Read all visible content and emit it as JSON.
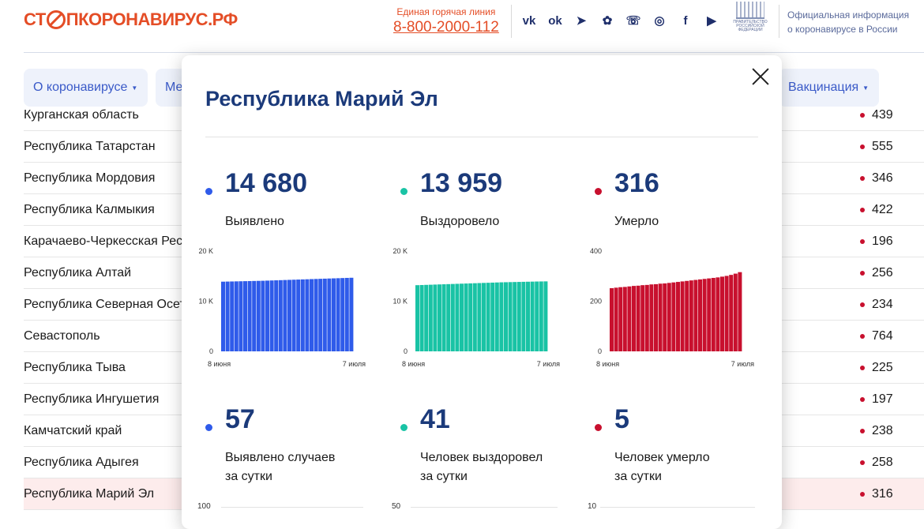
{
  "header": {
    "logo_part1": "СТ",
    "logo_part2": "ПКОРОНАВИРУС.РФ",
    "hotline_label": "Единая горячая линия",
    "hotline_number": "8-800-2000-112",
    "socials": [
      {
        "icon": "vk-icon",
        "glyph": "vk"
      },
      {
        "icon": "odnoklassniki-icon",
        "glyph": "ok"
      },
      {
        "icon": "telegram-icon",
        "glyph": "➤"
      },
      {
        "icon": "viber-icon",
        "glyph": "✿"
      },
      {
        "icon": "viber-phone-icon",
        "glyph": "☏"
      },
      {
        "icon": "instagram-icon",
        "glyph": "◎"
      },
      {
        "icon": "facebook-icon",
        "glyph": "f"
      },
      {
        "icon": "youtube-icon",
        "glyph": "▶"
      }
    ],
    "gov_label": "ПРАВИТЕЛЬСТВО РОССИЙСКОЙ ФЕДЕРАЦИИ",
    "official_line1": "Официальная информация",
    "official_line2": "о коронавирусе в России"
  },
  "nav": {
    "about": "О коронавирусе",
    "measures": "Ме",
    "vaccination": "Вакцинация",
    "arrow": "▼"
  },
  "regions": [
    {
      "name": "Курганская область",
      "value": "439"
    },
    {
      "name": "Республика Татарстан",
      "value": "555"
    },
    {
      "name": "Республика Мордовия",
      "value": "346"
    },
    {
      "name": "Республика Калмыкия",
      "value": "422"
    },
    {
      "name": "Карачаево-Черкесская Рес",
      "value": "196"
    },
    {
      "name": "Республика Алтай",
      "value": "256"
    },
    {
      "name": "Республика Северная Осет",
      "value": "234"
    },
    {
      "name": "Севастополь",
      "value": "764"
    },
    {
      "name": "Республика Тыва",
      "value": "225"
    },
    {
      "name": "Республика Ингушетия",
      "value": "197"
    },
    {
      "name": "Камчатский край",
      "value": "238"
    },
    {
      "name": "Республика Адыгея",
      "value": "258"
    },
    {
      "name": "Республика Марий Эл",
      "value": "316"
    }
  ],
  "modal": {
    "title": "Республика Марий Эл",
    "stats": [
      {
        "value": "14 680",
        "label": "Выявлено",
        "color": "#2f5bea"
      },
      {
        "value": "13 959",
        "label": "Выздоровело",
        "color": "#19c3a5"
      },
      {
        "value": "316",
        "label": "Умерло",
        "color": "#c8102e"
      }
    ],
    "daily": [
      {
        "value": "57",
        "label1": "Выявлено случаев",
        "label2": "за сутки",
        "color": "#2f5bea",
        "axis_top": "100"
      },
      {
        "value": "41",
        "label1": "Человек выздоровел",
        "label2": "за сутки",
        "color": "#19c3a5",
        "axis_top": "50"
      },
      {
        "value": "5",
        "label1": "Человек умерло",
        "label2": "за сутки",
        "color": "#c8102e",
        "axis_top": "10"
      }
    ]
  },
  "chart_data": [
    {
      "type": "bar",
      "name": "Выявлено",
      "color": "#2f5bea",
      "ylim": [
        0,
        20000
      ],
      "yticks": [
        "0",
        "10 K",
        "20 K"
      ],
      "x_start": "8 июня",
      "x_end": "7 июля",
      "values": [
        13900,
        13920,
        13940,
        13960,
        13980,
        14000,
        14020,
        14040,
        14060,
        14080,
        14110,
        14140,
        14170,
        14200,
        14230,
        14260,
        14290,
        14320,
        14350,
        14380,
        14410,
        14440,
        14470,
        14500,
        14530,
        14560,
        14590,
        14620,
        14650,
        14680
      ]
    },
    {
      "type": "bar",
      "name": "Выздоровело",
      "color": "#19c3a5",
      "ylim": [
        0,
        20000
      ],
      "yticks": [
        "0",
        "10 K",
        "20 K"
      ],
      "x_start": "8 июня",
      "x_end": "7 июля",
      "values": [
        13200,
        13230,
        13260,
        13290,
        13320,
        13350,
        13380,
        13410,
        13440,
        13470,
        13500,
        13530,
        13560,
        13590,
        13620,
        13650,
        13680,
        13710,
        13740,
        13770,
        13790,
        13810,
        13830,
        13850,
        13870,
        13890,
        13910,
        13930,
        13945,
        13959
      ]
    },
    {
      "type": "bar",
      "name": "Умерло",
      "color": "#c8102e",
      "ylim": [
        0,
        400
      ],
      "yticks": [
        "0",
        "200",
        "400"
      ],
      "x_start": "8 июня",
      "x_end": "7 июля",
      "values": [
        252,
        254,
        256,
        257,
        259,
        261,
        262,
        264,
        265,
        267,
        268,
        270,
        271,
        273,
        275,
        277,
        279,
        281,
        283,
        285,
        287,
        289,
        291,
        293,
        295,
        298,
        301,
        305,
        310,
        316
      ]
    }
  ]
}
